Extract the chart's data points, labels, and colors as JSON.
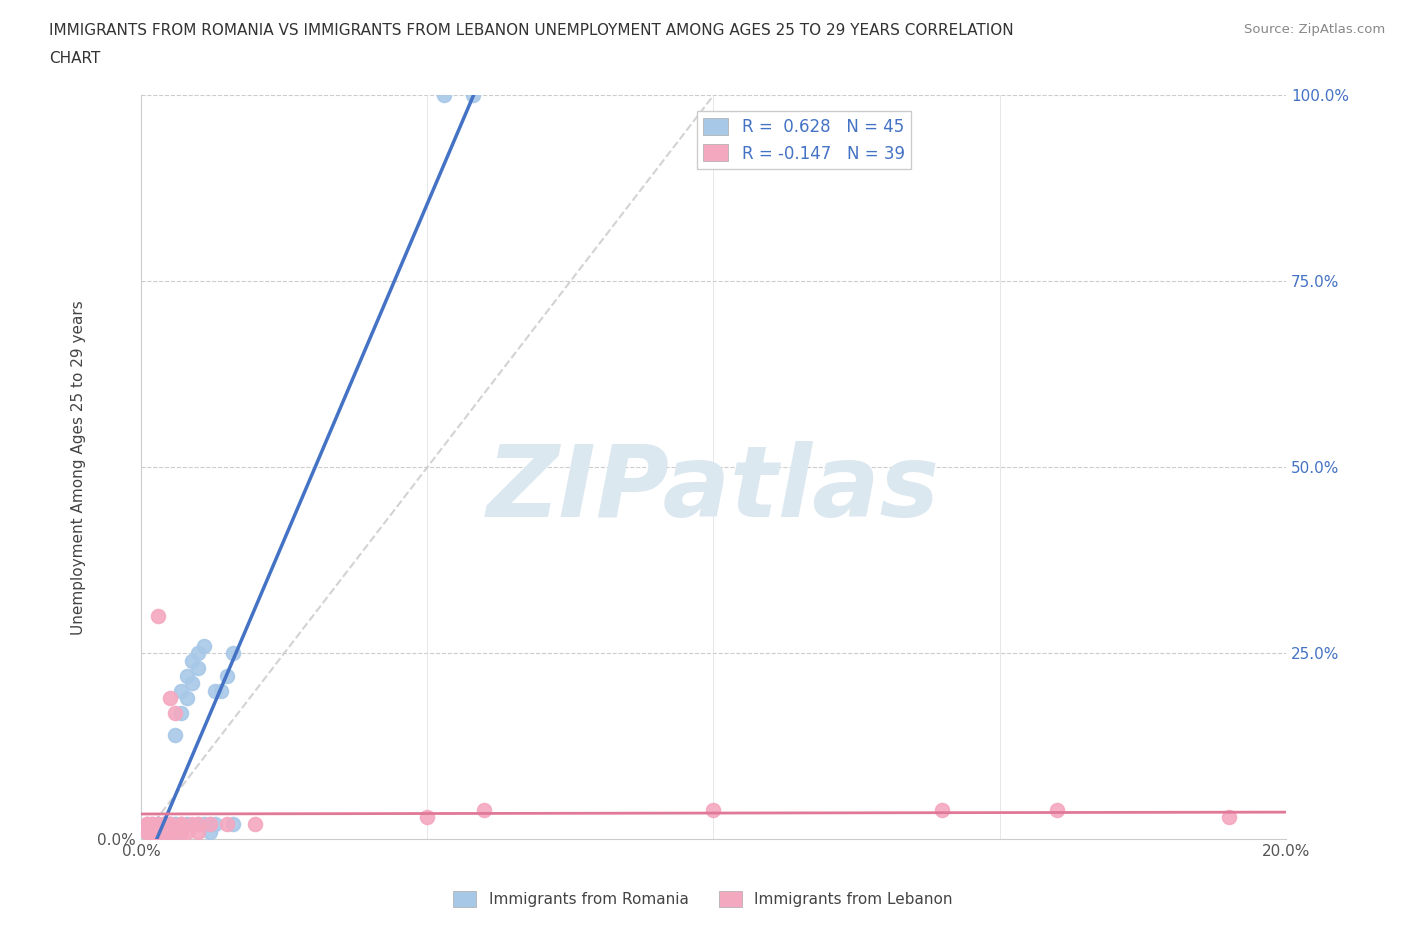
{
  "title_line1": "IMMIGRANTS FROM ROMANIA VS IMMIGRANTS FROM LEBANON UNEMPLOYMENT AMONG AGES 25 TO 29 YEARS CORRELATION",
  "title_line2": "CHART",
  "source": "Source: ZipAtlas.com",
  "ylabel": "Unemployment Among Ages 25 to 29 years",
  "xlabel_romania": "Immigrants from Romania",
  "xlabel_lebanon": "Immigrants from Lebanon",
  "xlim": [
    0.0,
    0.2
  ],
  "ylim": [
    0.0,
    1.0
  ],
  "romania_color": "#a8c8e8",
  "lebanon_color": "#f4a8c0",
  "regression_romania_color": "#4472c4",
  "regression_lebanon_color": "#e07898",
  "diagonal_color": "#c8c8c8",
  "watermark_text": "ZIPatlas",
  "watermark_color": "#dce8f0",
  "R_romania": 0.628,
  "N_romania": 45,
  "R_lebanon": -0.147,
  "N_lebanon": 39,
  "romania_x": [
    0.001,
    0.001,
    0.002,
    0.002,
    0.002,
    0.003,
    0.003,
    0.003,
    0.003,
    0.004,
    0.004,
    0.004,
    0.004,
    0.005,
    0.005,
    0.005,
    0.005,
    0.006,
    0.006,
    0.006,
    0.006,
    0.007,
    0.007,
    0.007,
    0.007,
    0.008,
    0.008,
    0.008,
    0.009,
    0.009,
    0.01,
    0.01,
    0.01,
    0.011,
    0.011,
    0.012,
    0.012,
    0.013,
    0.013,
    0.014,
    0.015,
    0.016,
    0.016,
    0.053,
    0.058
  ],
  "romania_y": [
    0.01,
    0.02,
    0.01,
    0.01,
    0.02,
    0.01,
    0.02,
    0.01,
    0.02,
    0.01,
    0.02,
    0.01,
    0.02,
    0.02,
    0.01,
    0.02,
    0.01,
    0.14,
    0.02,
    0.01,
    0.02,
    0.2,
    0.17,
    0.02,
    0.01,
    0.22,
    0.19,
    0.02,
    0.24,
    0.21,
    0.25,
    0.23,
    0.02,
    0.26,
    0.02,
    0.02,
    0.01,
    0.2,
    0.02,
    0.2,
    0.22,
    0.25,
    0.02,
    1.0,
    1.0
  ],
  "lebanon_x": [
    0.001,
    0.001,
    0.001,
    0.001,
    0.002,
    0.002,
    0.002,
    0.002,
    0.002,
    0.003,
    0.003,
    0.003,
    0.003,
    0.004,
    0.004,
    0.004,
    0.004,
    0.005,
    0.005,
    0.005,
    0.005,
    0.006,
    0.006,
    0.007,
    0.007,
    0.007,
    0.008,
    0.009,
    0.01,
    0.01,
    0.012,
    0.015,
    0.02,
    0.05,
    0.06,
    0.1,
    0.14,
    0.16,
    0.19
  ],
  "lebanon_y": [
    0.01,
    0.02,
    0.01,
    0.02,
    0.01,
    0.01,
    0.02,
    0.01,
    0.02,
    0.01,
    0.3,
    0.02,
    0.01,
    0.02,
    0.01,
    0.02,
    0.01,
    0.19,
    0.02,
    0.01,
    0.02,
    0.17,
    0.01,
    0.02,
    0.01,
    0.02,
    0.01,
    0.02,
    0.02,
    0.01,
    0.02,
    0.02,
    0.02,
    0.03,
    0.04,
    0.04,
    0.04,
    0.04,
    0.03
  ]
}
